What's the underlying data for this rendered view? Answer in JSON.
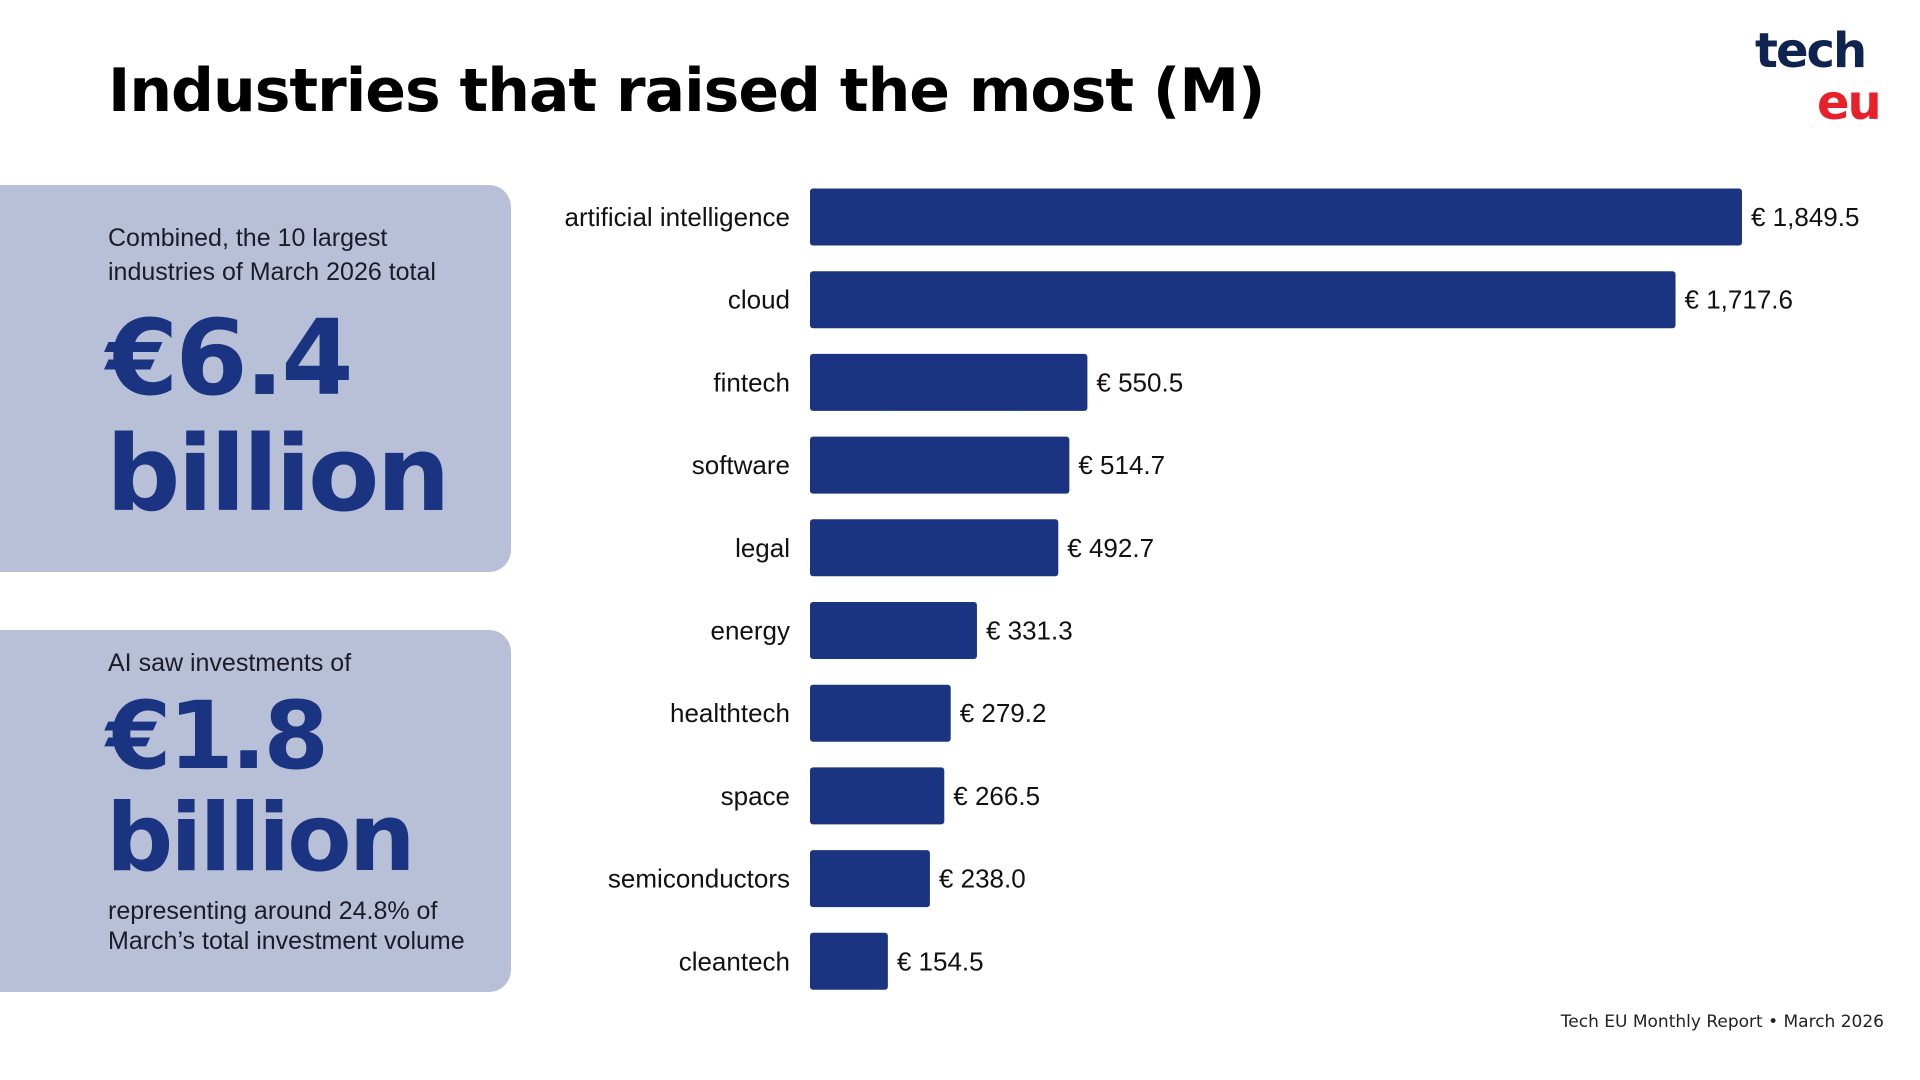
{
  "title": "Industries that raised the most (M)",
  "logo": {
    "line1": "tech",
    "line2": "eu"
  },
  "box1": {
    "intro": "Combined, the 10 largest industries of March 2026 total",
    "amount": "€6.4",
    "unit": "billion"
  },
  "box2": {
    "intro": "AI saw investments of",
    "amount": "€1.8",
    "unit": "billion",
    "note": "representing around 24.8% of March’s total investment volume"
  },
  "footer": "Tech EU Monthly Report • March 2026",
  "colors": {
    "bar": "#1a3482",
    "box": "#b8c0d8"
  },
  "chart_data": {
    "type": "bar",
    "orientation": "horizontal",
    "title": "Industries that raised the most (M)",
    "currency_prefix": "€ ",
    "categories": [
      "artificial intelligence",
      "cloud",
      "fintech",
      "software",
      "legal",
      "energy",
      "healthtech",
      "space",
      "semiconductors",
      "cleantech"
    ],
    "values": [
      1849.5,
      1717.6,
      550.5,
      514.7,
      492.7,
      331.3,
      279.2,
      266.5,
      238.0,
      154.5
    ],
    "labels": [
      "€ 1,849.5",
      "€ 1,717.6",
      "€ 550.5",
      "€ 514.7",
      "€ 492.7",
      "€ 331.3",
      "€ 279.2",
      "€ 266.5",
      "€ 238.0",
      "€ 154.5"
    ],
    "xlim": [
      0,
      1849.5
    ],
    "grid": false
  }
}
